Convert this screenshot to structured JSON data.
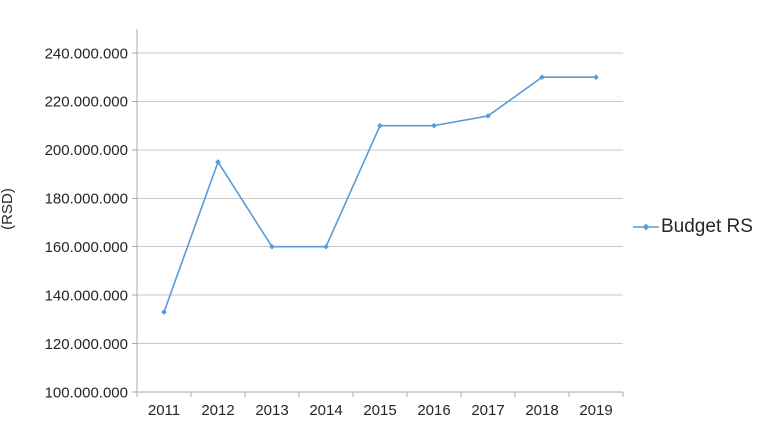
{
  "chart": {
    "y_axis_title": "(RSD)",
    "legend": {
      "label": "Budget RS"
    },
    "colors": {
      "series": "#5B9BD5",
      "gridline": "#C9C9C9",
      "axis": "#A9A9A9",
      "text": "#262626"
    }
  },
  "chart_data": {
    "type": "line",
    "categories": [
      "2011",
      "2012",
      "2013",
      "2014",
      "2015",
      "2016",
      "2017",
      "2018",
      "2019"
    ],
    "series": [
      {
        "name": "Budget RS",
        "values": [
          133000000,
          195000000,
          160000000,
          160000000,
          210000000,
          210000000,
          214000000,
          230000000,
          230000000
        ]
      }
    ],
    "ylabel": "(RSD)",
    "ylim": [
      100000000,
      250000000
    ],
    "y_major_unit": 20000000,
    "y_tick_labels": [
      "100.000.000",
      "120.000.000",
      "140.000.000",
      "160.000.000",
      "180.000.000",
      "200.000.000",
      "220.000.000",
      "240.000.000"
    ],
    "grid": true,
    "markers": true,
    "legend_position": "right",
    "number_format": "thousands-dot"
  }
}
